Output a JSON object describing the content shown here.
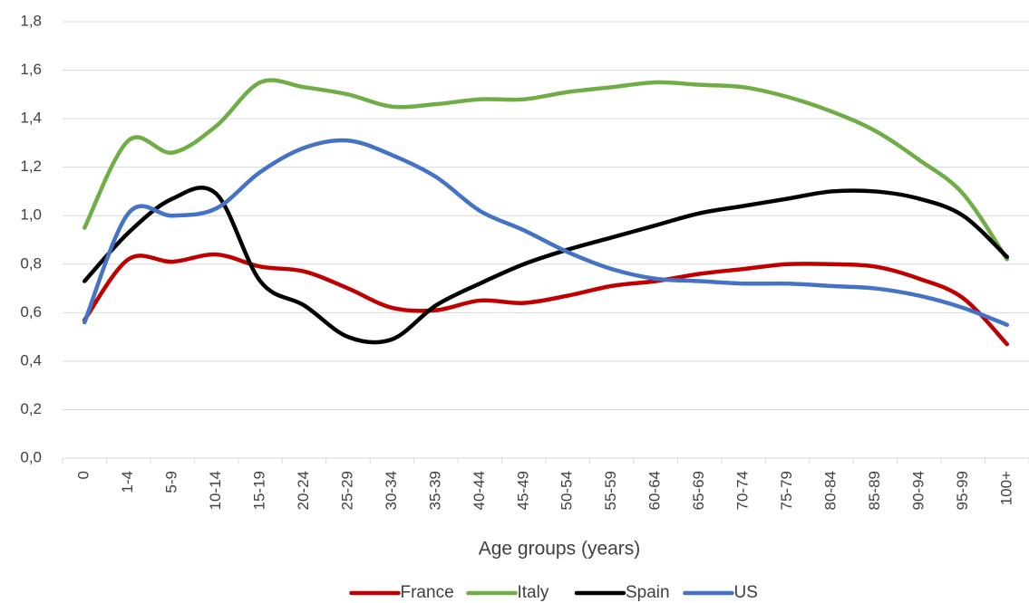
{
  "chart_data": {
    "type": "line",
    "x_label": "Age groups (years)",
    "categories": [
      "0",
      "1-4",
      "5-9",
      "10-14",
      "15-19",
      "20-24",
      "25-29",
      "30-34",
      "35-39",
      "40-44",
      "45-49",
      "50-54",
      "55-59",
      "60-64",
      "65-69",
      "70-74",
      "75-79",
      "80-84",
      "85-89",
      "90-94",
      "95-99",
      "100+"
    ],
    "series": [
      {
        "name": "France",
        "color": "#c00000",
        "values": [
          0.57,
          0.82,
          0.81,
          0.84,
          0.79,
          0.77,
          0.7,
          0.62,
          0.61,
          0.65,
          0.64,
          0.67,
          0.71,
          0.73,
          0.76,
          0.78,
          0.8,
          0.8,
          0.79,
          0.74,
          0.66,
          0.47
        ]
      },
      {
        "name": "Italy",
        "color": "#70ad47",
        "values": [
          0.95,
          1.31,
          1.26,
          1.37,
          1.55,
          1.53,
          1.5,
          1.45,
          1.46,
          1.48,
          1.48,
          1.51,
          1.53,
          1.55,
          1.54,
          1.53,
          1.49,
          1.43,
          1.35,
          1.23,
          1.09,
          0.82
        ]
      },
      {
        "name": "Spain",
        "color": "#000000",
        "values": [
          0.73,
          0.93,
          1.07,
          1.09,
          0.73,
          0.63,
          0.5,
          0.49,
          0.63,
          0.72,
          0.8,
          0.86,
          0.91,
          0.96,
          1.01,
          1.04,
          1.07,
          1.1,
          1.1,
          1.07,
          1.0,
          0.83
        ]
      },
      {
        "name": "US",
        "color": "#4472c4",
        "values": [
          0.56,
          1.01,
          1.0,
          1.03,
          1.18,
          1.28,
          1.31,
          1.25,
          1.16,
          1.02,
          0.94,
          0.85,
          0.78,
          0.74,
          0.73,
          0.72,
          0.72,
          0.71,
          0.7,
          0.67,
          0.62,
          0.55
        ]
      }
    ],
    "ylim": [
      0,
      1.8
    ],
    "yticks": [
      {
        "value": 0,
        "label": "0,0"
      },
      {
        "value": 0.2,
        "label": "0,2"
      },
      {
        "value": 0.4,
        "label": "0,4"
      },
      {
        "value": 0.6,
        "label": "0,6"
      },
      {
        "value": 0.8,
        "label": "0,8"
      },
      {
        "value": 1.0,
        "label": "1,0"
      },
      {
        "value": 1.2,
        "label": "1,2"
      },
      {
        "value": 1.4,
        "label": "1,4"
      },
      {
        "value": 1.6,
        "label": "1,6"
      },
      {
        "value": 1.8,
        "label": "1,8"
      }
    ],
    "grid": true,
    "smooth": true,
    "legend": "bottom"
  }
}
